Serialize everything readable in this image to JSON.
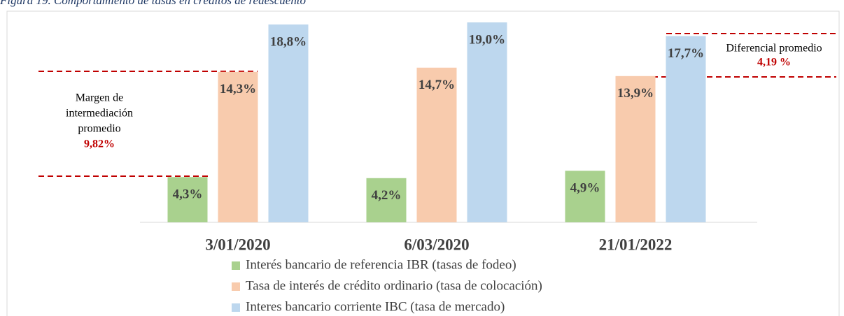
{
  "chart_data": {
    "type": "bar",
    "title": "Figura 19. Comportamiento de tasas en créditos de redescuento",
    "categories": [
      "3/01/2020",
      "6/03/2020",
      "21/01/2022"
    ],
    "series": [
      {
        "name": "Interés bancario de referencia IBR (tasas de fodeo)",
        "color": "#a9d18e",
        "values": [
          4.3,
          4.2,
          4.9
        ],
        "value_labels": [
          "4,3%",
          "4,2%",
          "4,9%"
        ]
      },
      {
        "name": "Tasa de interés de crédito ordinario (tasa de colocación)",
        "color": "#f8cbad",
        "values": [
          14.3,
          14.7,
          13.9
        ],
        "value_labels": [
          "14,3%",
          "14,7%",
          "13,9%"
        ]
      },
      {
        "name": "Interes bancario corriente IBC (tasa de mercado)",
        "color": "#bdd7ee",
        "values": [
          18.8,
          19.0,
          17.7
        ],
        "value_labels": [
          "18,8%",
          "19,0%",
          "17,7%"
        ]
      }
    ],
    "ylim": [
      0,
      20
    ],
    "annotations": [
      {
        "text": [
          "Margen de",
          "intermediación",
          "promedio"
        ],
        "value_label": "9,82%"
      },
      {
        "text": [
          "Diferencial promedio"
        ],
        "value_label": "4,19 %"
      }
    ]
  }
}
